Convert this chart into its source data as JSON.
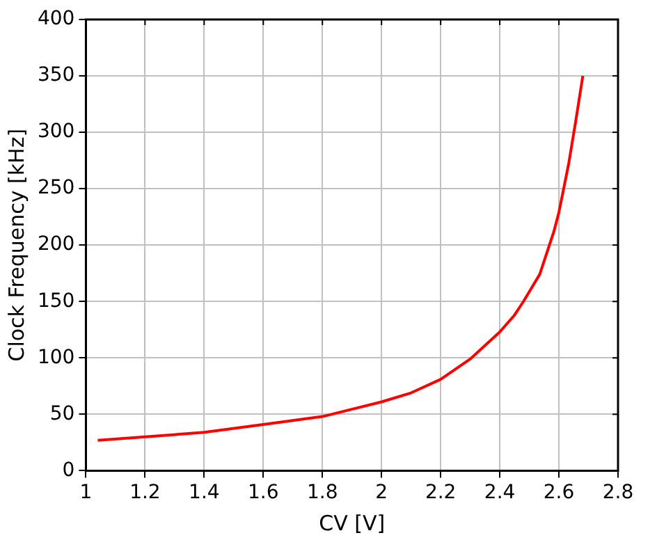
{
  "chart_data": {
    "type": "line",
    "xlabel": "CV [V]",
    "ylabel": "Clock Frequency [kHz]",
    "x": [
      1.04,
      1.2,
      1.4,
      1.6,
      1.8,
      2.0,
      2.1,
      2.2,
      2.3,
      2.4,
      2.45,
      2.48,
      2.535,
      2.583,
      2.6,
      2.633,
      2.657,
      2.681
    ],
    "series": [
      {
        "color": "#ff0000",
        "values": [
          27,
          30,
          34,
          41,
          48,
          61,
          69,
          81,
          99,
          123,
          138,
          150,
          174,
          212,
          229,
          272,
          310,
          350
        ]
      }
    ],
    "xlim": [
      1,
      2.8
    ],
    "xticks": [
      1,
      1.2,
      1.4,
      1.6,
      1.8,
      2,
      2.2,
      2.4,
      2.6,
      2.8
    ],
    "ylim": [
      0,
      400
    ],
    "yticks": [
      0,
      50,
      100,
      150,
      200,
      250,
      300,
      350,
      400
    ],
    "grid": true,
    "legend": false,
    "marker": "none",
    "line_style": "solid"
  }
}
